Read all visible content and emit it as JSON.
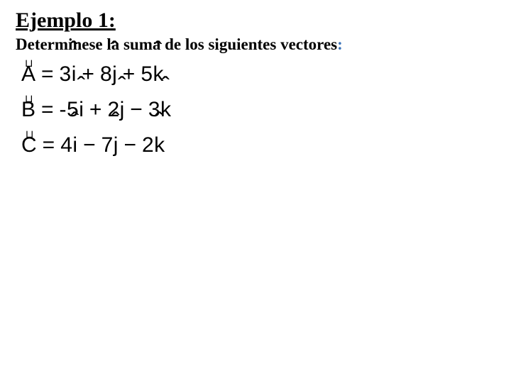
{
  "title": "Ejemplo 1:",
  "subtitle_text": "Determinese la suma de los siguientes vectores",
  "subtitle_colon": ":",
  "colors": {
    "text": "#000000",
    "background": "#ffffff",
    "subtitle_colon": "#3b73b9"
  },
  "typography": {
    "title_family": "Times New Roman",
    "title_size_pt": 22,
    "title_weight": "bold",
    "title_underline": true,
    "subtitle_family": "Times New Roman",
    "subtitle_size_pt": 17,
    "subtitle_weight": "bold",
    "equation_family": "Arial",
    "equation_size_pt": 22
  },
  "vectors": [
    {
      "name": "A",
      "terms": [
        {
          "coef": "3",
          "unit": "i",
          "op": ""
        },
        {
          "coef": "8",
          "unit": "j",
          "op": "+"
        },
        {
          "coef": "5",
          "unit": "k",
          "op": "+"
        }
      ]
    },
    {
      "name": "B",
      "terms": [
        {
          "coef": "-5",
          "unit": "i",
          "op": ""
        },
        {
          "coef": "2",
          "unit": "j",
          "op": "+"
        },
        {
          "coef": "3",
          "unit": "k",
          "op": "−"
        }
      ]
    },
    {
      "name": "C",
      "terms": [
        {
          "coef": "4",
          "unit": "i",
          "op": ""
        },
        {
          "coef": "7",
          "unit": "j",
          "op": "−"
        },
        {
          "coef": "2",
          "unit": "k",
          "op": "−"
        }
      ]
    }
  ],
  "equals_sign": "=",
  "arrow_glyph": "⊔"
}
